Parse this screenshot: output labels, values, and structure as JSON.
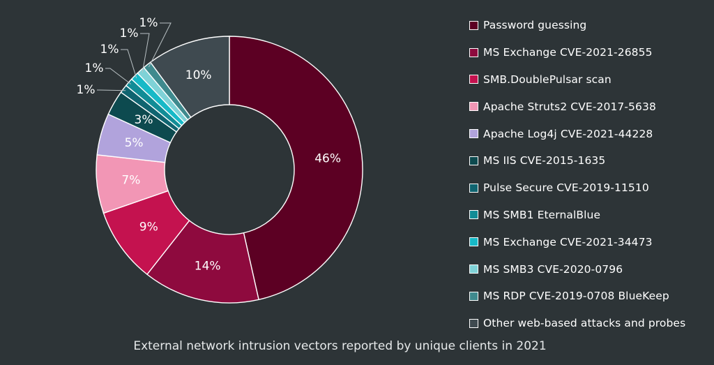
{
  "chart_data": {
    "type": "pie",
    "donut": true,
    "caption": "External network intrusion vectors reported by unique clients in 2021",
    "legend_position": "right",
    "slices": [
      {
        "name": "Password guessing",
        "value": 46,
        "label": "46%",
        "color": "#5c0023"
      },
      {
        "name": "MS Exchange CVE-2021-26855",
        "value": 14,
        "label": "14%",
        "color": "#8e0a3e"
      },
      {
        "name": "SMB.DoublePulsar scan",
        "value": 9,
        "label": "9%",
        "color": "#c4124f"
      },
      {
        "name": "Apache Struts2 CVE-2017-5638",
        "value": 7,
        "label": "7%",
        "color": "#f296b5"
      },
      {
        "name": "Apache Log4j CVE-2021-44228",
        "value": 5,
        "label": "5%",
        "color": "#b1a3dc"
      },
      {
        "name": "MS IIS CVE-2015-1635",
        "value": 3,
        "label": "3%",
        "color": "#0d4a4f"
      },
      {
        "name": "Pulse Secure CVE-2019-11510",
        "value": 1,
        "label": "1%",
        "color": "#0f6470"
      },
      {
        "name": "MS SMB1 EternalBlue",
        "value": 1,
        "label": "1%",
        "color": "#118c96"
      },
      {
        "name": "MS Exchange CVE-2021-34473",
        "value": 1,
        "label": "1%",
        "color": "#17b9c7"
      },
      {
        "name": "MS SMB3 CVE-2020-0796",
        "value": 1,
        "label": "1%",
        "color": "#7fd2d7"
      },
      {
        "name": "MS RDP CVE-2019-0708 BlueKeep",
        "value": 1,
        "label": "1%",
        "color": "#3f8a8e"
      },
      {
        "name": "Other web-based attacks and probes",
        "value": 10,
        "label": "10%",
        "color": "#3f4a50"
      }
    ]
  }
}
